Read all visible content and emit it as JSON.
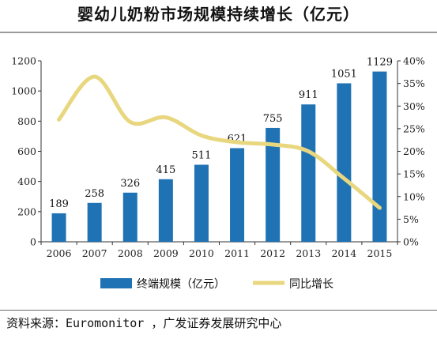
{
  "title": "婴幼儿奶粉市场规模持续增长（亿元）",
  "source": "资料来源：Euromonitor ，广发证券发展研究中心",
  "colors": {
    "bar": "#1f72b3",
    "line": "#e8d77f"
  },
  "chart_data": {
    "type": "bar+line",
    "categories": [
      "2006",
      "2007",
      "2008",
      "2009",
      "2010",
      "2011",
      "2012",
      "2013",
      "2014",
      "2015"
    ],
    "series": [
      {
        "name": "终端规模（亿元）",
        "type": "bar",
        "axis": "left",
        "values": [
          189,
          258,
          326,
          415,
          511,
          621,
          755,
          911,
          1051,
          1129
        ]
      },
      {
        "name": "同比增长",
        "type": "line",
        "axis": "right",
        "values": [
          0.27,
          0.365,
          0.265,
          0.275,
          0.235,
          0.22,
          0.215,
          0.2,
          0.14,
          0.075
        ]
      }
    ],
    "left_axis": {
      "ylim": [
        0,
        1200
      ],
      "ticks": [
        "0",
        "200",
        "400",
        "600",
        "800",
        "1000",
        "1200"
      ]
    },
    "right_axis": {
      "ylim": [
        0,
        0.4
      ],
      "ticks": [
        "0%",
        "5%",
        "10%",
        "15%",
        "20%",
        "25%",
        "30%",
        "35%",
        "40%"
      ]
    },
    "legend_position": "bottom"
  }
}
